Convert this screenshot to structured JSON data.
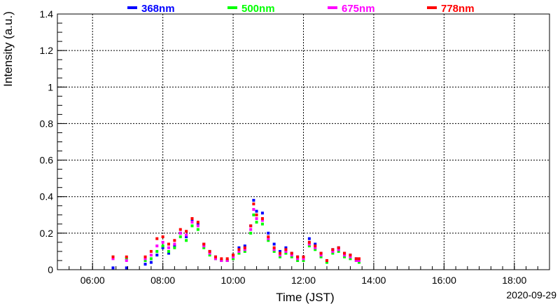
{
  "chart_data": {
    "type": "scatter",
    "title": "",
    "xlabel": "Time (JST)",
    "ylabel": "Intensity (a.u.)",
    "date_label": "2020-09-29",
    "xlim": [
      "05:00",
      "19:00"
    ],
    "ylim": [
      0,
      1.4
    ],
    "x_ticks": [
      "06:00",
      "08:00",
      "10:00",
      "12:00",
      "14:00",
      "16:00",
      "18:00"
    ],
    "y_ticks": [
      "0",
      "0.2",
      "0.4",
      "0.6",
      "0.8",
      "1",
      "1.2",
      "1.4"
    ],
    "grid": true,
    "legend_position": "top",
    "series": [
      {
        "name": "368nm",
        "color": "#0000ff",
        "points": [
          [
            "06:35",
            0.01
          ],
          [
            "06:58",
            0.01
          ],
          [
            "07:30",
            0.03
          ],
          [
            "07:40",
            0.04
          ],
          [
            "07:50",
            0.08
          ],
          [
            "08:00",
            0.12
          ],
          [
            "08:10",
            0.09
          ],
          [
            "08:20",
            0.13
          ],
          [
            "08:30",
            0.2
          ],
          [
            "08:40",
            0.18
          ],
          [
            "08:50",
            0.27
          ],
          [
            "09:00",
            0.25
          ],
          [
            "09:10",
            0.14
          ],
          [
            "09:20",
            0.1
          ],
          [
            "09:30",
            0.07
          ],
          [
            "09:40",
            0.05
          ],
          [
            "09:50",
            0.05
          ],
          [
            "10:00",
            0.08
          ],
          [
            "10:10",
            0.12
          ],
          [
            "10:20",
            0.13
          ],
          [
            "10:30",
            0.24
          ],
          [
            "10:35",
            0.38
          ],
          [
            "10:40",
            0.32
          ],
          [
            "10:50",
            0.31
          ],
          [
            "11:00",
            0.2
          ],
          [
            "11:10",
            0.14
          ],
          [
            "11:20",
            0.1
          ],
          [
            "11:30",
            0.12
          ],
          [
            "11:40",
            0.09
          ],
          [
            "11:50",
            0.07
          ],
          [
            "12:00",
            0.07
          ],
          [
            "12:10",
            0.17
          ],
          [
            "12:20",
            0.14
          ],
          [
            "12:30",
            0.09
          ],
          [
            "12:40",
            0.05
          ],
          [
            "12:50",
            0.11
          ],
          [
            "13:00",
            0.12
          ],
          [
            "13:10",
            0.09
          ],
          [
            "13:20",
            0.08
          ],
          [
            "13:30",
            0.06
          ],
          [
            "13:35",
            0.05
          ]
        ]
      },
      {
        "name": "500nm",
        "color": "#00ff00",
        "points": [
          [
            "06:35",
            0.07
          ],
          [
            "06:58",
            0.06
          ],
          [
            "07:30",
            0.05
          ],
          [
            "07:40",
            0.06
          ],
          [
            "07:50",
            0.1
          ],
          [
            "08:00",
            0.13
          ],
          [
            "08:10",
            0.1
          ],
          [
            "08:20",
            0.12
          ],
          [
            "08:30",
            0.18
          ],
          [
            "08:40",
            0.16
          ],
          [
            "08:50",
            0.24
          ],
          [
            "09:00",
            0.22
          ],
          [
            "09:10",
            0.12
          ],
          [
            "09:20",
            0.08
          ],
          [
            "09:30",
            0.06
          ],
          [
            "09:40",
            0.05
          ],
          [
            "09:50",
            0.05
          ],
          [
            "10:00",
            0.06
          ],
          [
            "10:10",
            0.09
          ],
          [
            "10:20",
            0.1
          ],
          [
            "10:30",
            0.2
          ],
          [
            "10:35",
            0.3
          ],
          [
            "10:40",
            0.26
          ],
          [
            "10:50",
            0.25
          ],
          [
            "11:00",
            0.16
          ],
          [
            "11:10",
            0.1
          ],
          [
            "11:20",
            0.07
          ],
          [
            "11:30",
            0.09
          ],
          [
            "11:40",
            0.07
          ],
          [
            "11:50",
            0.05
          ],
          [
            "12:00",
            0.05
          ],
          [
            "12:10",
            0.13
          ],
          [
            "12:20",
            0.11
          ],
          [
            "12:30",
            0.07
          ],
          [
            "12:40",
            0.04
          ],
          [
            "12:50",
            0.09
          ],
          [
            "13:00",
            0.1
          ],
          [
            "13:10",
            0.07
          ],
          [
            "13:20",
            0.06
          ],
          [
            "13:30",
            0.05
          ],
          [
            "13:35",
            0.04
          ]
        ]
      },
      {
        "name": "675nm",
        "color": "#ff00ff",
        "points": [
          [
            "06:35",
            0.06
          ],
          [
            "06:58",
            0.05
          ],
          [
            "07:30",
            0.06
          ],
          [
            "07:40",
            0.08
          ],
          [
            "07:50",
            0.13
          ],
          [
            "08:00",
            0.15
          ],
          [
            "08:10",
            0.12
          ],
          [
            "08:20",
            0.14
          ],
          [
            "08:30",
            0.2
          ],
          [
            "08:40",
            0.19
          ],
          [
            "08:50",
            0.26
          ],
          [
            "09:00",
            0.24
          ],
          [
            "09:10",
            0.13
          ],
          [
            "09:20",
            0.09
          ],
          [
            "09:30",
            0.06
          ],
          [
            "09:40",
            0.05
          ],
          [
            "09:50",
            0.05
          ],
          [
            "10:00",
            0.07
          ],
          [
            "10:10",
            0.1
          ],
          [
            "10:20",
            0.11
          ],
          [
            "10:30",
            0.22
          ],
          [
            "10:35",
            0.33
          ],
          [
            "10:40",
            0.28
          ],
          [
            "10:50",
            0.27
          ],
          [
            "11:00",
            0.17
          ],
          [
            "11:10",
            0.11
          ],
          [
            "11:20",
            0.08
          ],
          [
            "11:30",
            0.1
          ],
          [
            "11:40",
            0.08
          ],
          [
            "11:50",
            0.06
          ],
          [
            "12:00",
            0.06
          ],
          [
            "12:10",
            0.14
          ],
          [
            "12:20",
            0.12
          ],
          [
            "12:30",
            0.08
          ],
          [
            "12:40",
            0.05
          ],
          [
            "12:50",
            0.1
          ],
          [
            "13:00",
            0.11
          ],
          [
            "13:10",
            0.08
          ],
          [
            "13:20",
            0.07
          ],
          [
            "13:30",
            0.05
          ],
          [
            "13:35",
            0.05
          ]
        ]
      },
      {
        "name": "778nm",
        "color": "#ff0000",
        "points": [
          [
            "06:35",
            0.07
          ],
          [
            "06:58",
            0.07
          ],
          [
            "07:30",
            0.07
          ],
          [
            "07:40",
            0.1
          ],
          [
            "07:50",
            0.17
          ],
          [
            "08:00",
            0.18
          ],
          [
            "08:10",
            0.14
          ],
          [
            "08:20",
            0.16
          ],
          [
            "08:30",
            0.22
          ],
          [
            "08:40",
            0.21
          ],
          [
            "08:50",
            0.28
          ],
          [
            "09:00",
            0.26
          ],
          [
            "09:10",
            0.14
          ],
          [
            "09:20",
            0.1
          ],
          [
            "09:30",
            0.07
          ],
          [
            "09:40",
            0.06
          ],
          [
            "09:50",
            0.06
          ],
          [
            "10:00",
            0.08
          ],
          [
            "10:10",
            0.11
          ],
          [
            "10:20",
            0.12
          ],
          [
            "10:30",
            0.24
          ],
          [
            "10:35",
            0.36
          ],
          [
            "10:40",
            0.3
          ],
          [
            "10:50",
            0.28
          ],
          [
            "11:00",
            0.18
          ],
          [
            "11:10",
            0.12
          ],
          [
            "11:20",
            0.09
          ],
          [
            "11:30",
            0.11
          ],
          [
            "11:40",
            0.09
          ],
          [
            "11:50",
            0.07
          ],
          [
            "12:00",
            0.07
          ],
          [
            "12:10",
            0.15
          ],
          [
            "12:20",
            0.13
          ],
          [
            "12:30",
            0.09
          ],
          [
            "12:40",
            0.05
          ],
          [
            "12:50",
            0.11
          ],
          [
            "13:00",
            0.12
          ],
          [
            "13:10",
            0.09
          ],
          [
            "13:20",
            0.08
          ],
          [
            "13:30",
            0.06
          ],
          [
            "13:35",
            0.06
          ]
        ]
      }
    ]
  }
}
